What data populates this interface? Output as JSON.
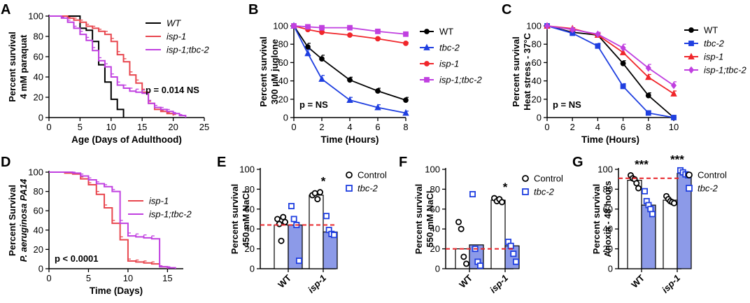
{
  "panels": [
    {
      "letter": "A",
      "chart_data": {
        "type": "line",
        "xlabel": "Age (Days of Adulthood)",
        "ylabel_lines": [
          "Percent survival",
          "4 mM paraquat"
        ],
        "xlim": [
          0,
          25
        ],
        "ylim": [
          0,
          100
        ],
        "xticks": [
          0,
          5,
          10,
          15,
          20,
          25
        ],
        "yticks": [
          0,
          20,
          40,
          60,
          80,
          100
        ],
        "annotation": "p = 0.014 NS",
        "series": [
          {
            "name": "WT",
            "color": "#000000",
            "marker": "none",
            "errorbars": false,
            "x": [
              0,
              4,
              5,
              6,
              7,
              8,
              9,
              10,
              11,
              12
            ],
            "y": [
              100,
              100,
              88,
              86,
              75,
              52,
              35,
              18,
              8,
              0
            ]
          },
          {
            "name": "isp-1",
            "color": "#e8474f",
            "marker": "none",
            "errorbars": true,
            "x": [
              0,
              3,
              4,
              5,
              6,
              7,
              8,
              9,
              10,
              11,
              12,
              13,
              14,
              15,
              16,
              17,
              18,
              19,
              20
            ],
            "y": [
              100,
              98,
              96,
              94,
              90,
              88,
              85,
              82,
              75,
              62,
              55,
              42,
              34,
              25,
              14,
              8,
              6,
              4,
              2
            ],
            "err": [
              0,
              1,
              2,
              2,
              2,
              2,
              2,
              3,
              3,
              3,
              3,
              3,
              3,
              3,
              2,
              2,
              1,
              1,
              1
            ]
          },
          {
            "name": "isp-1;tbc-2",
            "color": "#c040e0",
            "marker": "none",
            "errorbars": true,
            "x": [
              0,
              2,
              3,
              4,
              5,
              6,
              7,
              8,
              9,
              10,
              11,
              12,
              13,
              14,
              15,
              16,
              17,
              18,
              19,
              20,
              21,
              22
            ],
            "y": [
              100,
              98,
              94,
              88,
              82,
              76,
              66,
              56,
              50,
              40,
              32,
              29,
              26,
              25,
              24,
              14,
              10,
              8,
              6,
              4,
              2,
              0
            ],
            "err": [
              0,
              1,
              2,
              2,
              3,
              3,
              3,
              3,
              3,
              3,
              3,
              3,
              3,
              3,
              3,
              3,
              2,
              2,
              2,
              1,
              1,
              0
            ]
          }
        ]
      }
    },
    {
      "letter": "B",
      "chart_data": {
        "type": "line",
        "xlabel": "Time (Hours)",
        "ylabel_lines": [
          "Percent survival",
          "300 µM juglone"
        ],
        "xlim": [
          0,
          8
        ],
        "ylim": [
          0,
          100
        ],
        "xticks": [
          0,
          2,
          4,
          6,
          8
        ],
        "yticks": [
          0,
          20,
          40,
          60,
          80,
          100
        ],
        "annotation": "p = NS",
        "series": [
          {
            "name": "WT",
            "color": "#000000",
            "marker": "circle",
            "errorbars": true,
            "x": [
              0,
              1,
              2,
              4,
              6,
              8
            ],
            "y": [
              100,
              77,
              64,
              41,
              29,
              19
            ],
            "err": [
              0,
              4,
              4,
              3,
              3,
              3
            ]
          },
          {
            "name": "tbc-2",
            "color": "#1f3fe0",
            "marker": "triangle",
            "errorbars": true,
            "x": [
              0,
              1,
              2,
              4,
              6,
              8
            ],
            "y": [
              100,
              70,
              42,
              19,
              11,
              5
            ],
            "err": [
              0,
              4,
              4,
              3,
              3,
              2
            ]
          },
          {
            "name": "isp-1",
            "color": "#f0262b",
            "marker": "circle",
            "errorbars": true,
            "x": [
              0,
              1,
              2,
              4,
              6,
              8
            ],
            "y": [
              100,
              96,
              93,
              90,
              86,
              81
            ],
            "err": [
              0,
              1,
              1,
              1,
              1,
              1
            ]
          },
          {
            "name": "isp-1;tbc-2",
            "color": "#c040e0",
            "marker": "square",
            "errorbars": true,
            "x": [
              0,
              1,
              2,
              4,
              6,
              8
            ],
            "y": [
              100,
              99,
              98,
              98,
              94,
              91
            ],
            "err": [
              0,
              1,
              1,
              1,
              1,
              1
            ]
          }
        ]
      }
    },
    {
      "letter": "C",
      "chart_data": {
        "type": "line",
        "xlabel": "Time (Hours)",
        "ylabel_lines": [
          "Percent survival",
          "Heat stress - 37°C"
        ],
        "xlim": [
          0,
          10
        ],
        "ylim": [
          0,
          100
        ],
        "xticks": [
          0,
          2,
          4,
          6,
          8,
          10
        ],
        "yticks": [
          0,
          20,
          40,
          60,
          80,
          100
        ],
        "annotation": "p = NS",
        "series": [
          {
            "name": "WT",
            "color": "#000000",
            "marker": "circle",
            "errorbars": true,
            "x": [
              0,
              2,
              4,
              6,
              8,
              10
            ],
            "y": [
              100,
              93,
              90,
              59,
              24,
              0
            ],
            "err": [
              0,
              2,
              2,
              3,
              3,
              0
            ]
          },
          {
            "name": "tbc-2",
            "color": "#1f3fe0",
            "marker": "square",
            "errorbars": true,
            "x": [
              0,
              2,
              4,
              6,
              8,
              10
            ],
            "y": [
              100,
              92,
              78,
              34,
              5,
              0
            ],
            "err": [
              0,
              2,
              3,
              3,
              2,
              0
            ]
          },
          {
            "name": "isp-1",
            "color": "#f0262b",
            "marker": "triangle",
            "errorbars": true,
            "x": [
              0,
              2,
              4,
              6,
              8,
              10
            ],
            "y": [
              100,
              97,
              90,
              71,
              44,
              26
            ],
            "err": [
              0,
              1,
              2,
              3,
              3,
              3
            ]
          },
          {
            "name": "isp-1;tbc-2",
            "color": "#c040e0",
            "marker": "diamond",
            "errorbars": true,
            "x": [
              0,
              2,
              4,
              6,
              8,
              10
            ],
            "y": [
              100,
              96,
              91,
              76,
              54,
              35
            ],
            "err": [
              0,
              1,
              2,
              4,
              4,
              4
            ]
          }
        ]
      }
    },
    {
      "letter": "D",
      "chart_data": {
        "type": "line",
        "xlabel": "Time (Days)",
        "ylabel_lines": [
          "Percent Survival",
          "P. aeruginosa PA14"
        ],
        "ylabel_italic_line": 1,
        "xlim": [
          0,
          17
        ],
        "ylim": [
          0,
          100
        ],
        "xticks": [
          0,
          5,
          10,
          15
        ],
        "yticks": [
          0,
          20,
          40,
          60,
          80,
          100
        ],
        "annotation": "p < 0.0001",
        "series": [
          {
            "name": "isp-1",
            "color": "#e8474f",
            "marker": "none",
            "errorbars": true,
            "x": [
              0,
              2,
              3,
              4,
              5,
              6,
              7,
              8,
              9,
              10,
              11,
              12,
              13,
              14,
              15
            ],
            "y": [
              100,
              99,
              98,
              93,
              87,
              77,
              63,
              47,
              30,
              8,
              7,
              6,
              5,
              2,
              0
            ],
            "err": [
              0,
              1,
              1,
              2,
              2,
              3,
              3,
              3,
              3,
              2,
              2,
              2,
              2,
              1,
              0
            ]
          },
          {
            "name": "isp-1;tbc-2",
            "color": "#c040e0",
            "marker": "none",
            "errorbars": true,
            "x": [
              0,
              2,
              3,
              4,
              5,
              6,
              7,
              8,
              9,
              10,
              11,
              12,
              13,
              14,
              15,
              16
            ],
            "y": [
              100,
              100,
              99,
              96,
              92,
              88,
              85,
              80,
              47,
              34,
              33,
              32,
              31,
              2,
              1,
              0
            ],
            "err": [
              0,
              0,
              1,
              2,
              2,
              2,
              2,
              2,
              3,
              3,
              3,
              3,
              3,
              1,
              1,
              0
            ]
          }
        ]
      }
    },
    {
      "letter": "E",
      "chart_data": {
        "type": "bar",
        "categories": [
          "WT",
          "isp-1"
        ],
        "italic_categories": [
          false,
          true
        ],
        "ylabel_lines": [
          "Percent survival",
          "450 mM NaCl"
        ],
        "ylim": [
          0,
          100
        ],
        "yticks": [
          0,
          20,
          40,
          60,
          80,
          100
        ],
        "dashed_line": 44,
        "significance": [
          "",
          "*"
        ],
        "series": [
          {
            "name": "Control",
            "color": "#000000",
            "fill": "#ffffff",
            "marker": "circle",
            "values": [
              44,
              74
            ],
            "points": [
              [
                50,
                45,
                28,
                52,
                47
              ],
              [
                74,
                76,
                70,
                77
              ]
            ]
          },
          {
            "name": "tbc-2",
            "color": "#1f3fe0",
            "fill": "#8c9ae8",
            "marker": "square",
            "values": [
              44,
              37
            ],
            "points": [
              [
                63,
                50,
                44,
                8
              ],
              [
                53,
                39,
                35,
                34
              ]
            ]
          }
        ]
      }
    },
    {
      "letter": "F",
      "chart_data": {
        "type": "bar",
        "categories": [
          "WT",
          "isp-1"
        ],
        "italic_categories": [
          false,
          true
        ],
        "ylabel_lines": [
          "Percent survival",
          "550 mM NaCl"
        ],
        "ylim": [
          0,
          100
        ],
        "yticks": [
          0,
          20,
          40,
          60,
          80,
          100
        ],
        "dashed_line": 20,
        "significance": [
          "",
          "*"
        ],
        "series": [
          {
            "name": "Control",
            "color": "#000000",
            "fill": "#ffffff",
            "marker": "circle",
            "values": [
              20,
              69
            ],
            "points": [
              [
                47,
                40,
                12,
                5
              ],
              [
                71,
                68,
                70,
                67
              ]
            ]
          },
          {
            "name": "tbc-2",
            "color": "#1f3fe0",
            "fill": "#8c9ae8",
            "marker": "square",
            "values": [
              24,
              23
            ],
            "points": [
              [
                75,
                20,
                7,
                3
              ],
              [
                27,
                23,
                15,
                7
              ]
            ]
          }
        ]
      }
    },
    {
      "letter": "G",
      "chart_data": {
        "type": "bar",
        "categories": [
          "WT",
          "isp-1"
        ],
        "italic_categories": [
          false,
          true
        ],
        "ylabel_lines": [
          "Percent survival",
          "Anoxia - 48 hours"
        ],
        "ylim": [
          0,
          100
        ],
        "yticks": [
          0,
          20,
          40,
          60,
          80,
          100
        ],
        "dashed_line": 91,
        "significance": [
          "***",
          "***"
        ],
        "series": [
          {
            "name": "Control",
            "color": "#000000",
            "fill": "#ffffff",
            "marker": "circle",
            "values": [
              89,
              69
            ],
            "points": [
              [
                94,
                91,
                90,
                86,
                81
              ],
              [
                73,
                70,
                68,
                67,
                66
              ]
            ]
          },
          {
            "name": "tbc-2",
            "color": "#1f3fe0",
            "fill": "#8c9ae8",
            "marker": "square",
            "values": [
              64,
              96
            ],
            "points": [
              [
                78,
                68,
                64,
                60,
                55
              ],
              [
                99,
                97,
                95,
                94
              ]
            ]
          }
        ]
      }
    }
  ]
}
